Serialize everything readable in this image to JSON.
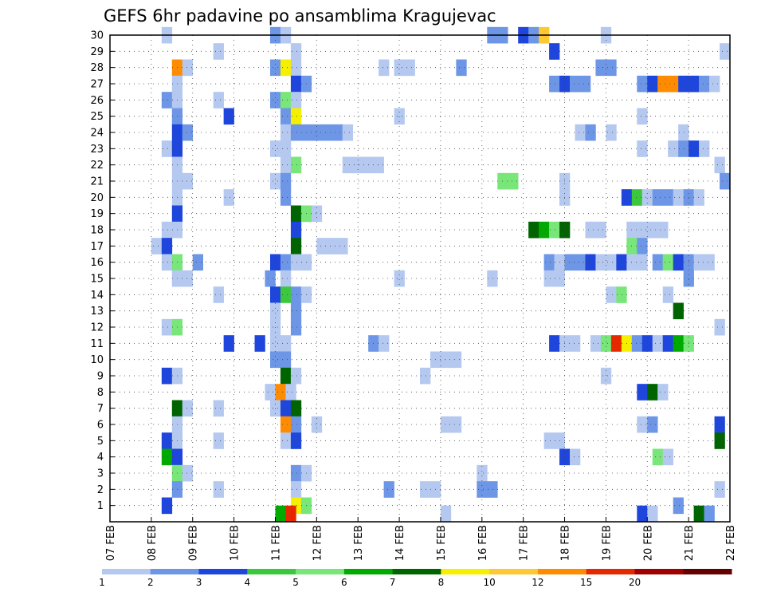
{
  "chart_data": {
    "type": "heatmap",
    "title": "GEFS 6hr padavine po ansamblima Kragujevac",
    "xlabel": "",
    "ylabel": "",
    "x_tick_labels": [
      "07 FEB",
      "08 FEB",
      "09 FEB",
      "10 FEB",
      "11 FEB",
      "12 FEB",
      "13 FEB",
      "14 FEB",
      "15 FEB",
      "16 FEB",
      "17 FEB",
      "18 FEB",
      "19 FEB",
      "20 FEB",
      "21 FEB",
      "22 FEB"
    ],
    "y_tick_labels": [
      "1",
      "2",
      "3",
      "4",
      "5",
      "6",
      "7",
      "8",
      "9",
      "10",
      "11",
      "12",
      "13",
      "14",
      "15",
      "16",
      "17",
      "18",
      "19",
      "20",
      "21",
      "22",
      "23",
      "24",
      "25",
      "26",
      "27",
      "28",
      "29",
      "30"
    ],
    "xlim": [
      0,
      60
    ],
    "ylim": [
      0,
      30
    ],
    "x_unit": "6-hour steps from 07 FEB 00z",
    "grid": true,
    "legend_placement": "bottom",
    "legend_labels": [
      "1",
      "2",
      "3",
      "4",
      "5",
      "6",
      "7",
      "8",
      "10",
      "12",
      "15",
      "20"
    ],
    "legend_colors": [
      "#b4c8f0",
      "#6e96e6",
      "#1e46dc",
      "#3cc83c",
      "#78e678",
      "#00aa00",
      "#006400",
      "#f5f000",
      "#ffc832",
      "#ff8c00",
      "#e62800",
      "#a00000",
      "#640000"
    ],
    "cells": [
      {
        "x": 5.5,
        "y": 30,
        "c": 0
      },
      {
        "x": 16,
        "y": 30,
        "c": 1
      },
      {
        "x": 17,
        "y": 30,
        "c": 0
      },
      {
        "x": 37,
        "y": 30,
        "c": 1
      },
      {
        "x": 38,
        "y": 30,
        "c": 1
      },
      {
        "x": 40,
        "y": 30,
        "c": 2
      },
      {
        "x": 41,
        "y": 30,
        "c": 1
      },
      {
        "x": 42,
        "y": 30,
        "c": 8
      },
      {
        "x": 48,
        "y": 30,
        "c": 0
      },
      {
        "x": 10.5,
        "y": 29,
        "c": 0
      },
      {
        "x": 18,
        "y": 29,
        "c": 0
      },
      {
        "x": 43,
        "y": 29,
        "c": 2
      },
      {
        "x": 59.5,
        "y": 29,
        "c": 0
      },
      {
        "x": 6.5,
        "y": 28,
        "c": 9
      },
      {
        "x": 7.5,
        "y": 28,
        "c": 0
      },
      {
        "x": 16,
        "y": 28,
        "c": 1
      },
      {
        "x": 17,
        "y": 28,
        "c": 7
      },
      {
        "x": 18,
        "y": 28,
        "c": 0
      },
      {
        "x": 26.5,
        "y": 28,
        "c": 0
      },
      {
        "x": 28,
        "y": 28,
        "c": 0
      },
      {
        "x": 29,
        "y": 28,
        "c": 0
      },
      {
        "x": 34,
        "y": 28,
        "c": 1
      },
      {
        "x": 47.5,
        "y": 28,
        "c": 1
      },
      {
        "x": 48.5,
        "y": 28,
        "c": 1
      },
      {
        "x": 6.5,
        "y": 27,
        "c": 0
      },
      {
        "x": 18,
        "y": 27,
        "c": 2
      },
      {
        "x": 19,
        "y": 27,
        "c": 1
      },
      {
        "x": 43,
        "y": 27,
        "c": 1
      },
      {
        "x": 44,
        "y": 27,
        "c": 2
      },
      {
        "x": 45,
        "y": 27,
        "c": 1
      },
      {
        "x": 46,
        "y": 27,
        "c": 1
      },
      {
        "x": 51.5,
        "y": 27,
        "c": 1
      },
      {
        "x": 52.5,
        "y": 27,
        "c": 2
      },
      {
        "x": 53.5,
        "y": 27,
        "c": 9
      },
      {
        "x": 54.5,
        "y": 27,
        "c": 9
      },
      {
        "x": 55.5,
        "y": 27,
        "c": 2
      },
      {
        "x": 56.5,
        "y": 27,
        "c": 2
      },
      {
        "x": 57.5,
        "y": 27,
        "c": 1
      },
      {
        "x": 58.5,
        "y": 27,
        "c": 0
      },
      {
        "x": 5.5,
        "y": 26,
        "c": 1
      },
      {
        "x": 6.5,
        "y": 26,
        "c": 0
      },
      {
        "x": 10.5,
        "y": 26,
        "c": 0
      },
      {
        "x": 16,
        "y": 26,
        "c": 1
      },
      {
        "x": 17,
        "y": 26,
        "c": 4
      },
      {
        "x": 18,
        "y": 26,
        "c": 0
      },
      {
        "x": 6.5,
        "y": 25,
        "c": 1
      },
      {
        "x": 11.5,
        "y": 25,
        "c": 2
      },
      {
        "x": 17,
        "y": 25,
        "c": 1
      },
      {
        "x": 18,
        "y": 25,
        "c": 7
      },
      {
        "x": 28,
        "y": 25,
        "c": 0
      },
      {
        "x": 51.5,
        "y": 25,
        "c": 0
      },
      {
        "x": 6.5,
        "y": 24,
        "c": 2
      },
      {
        "x": 7.5,
        "y": 24,
        "c": 1
      },
      {
        "x": 17,
        "y": 24,
        "c": 0
      },
      {
        "x": 18,
        "y": 24,
        "c": 1
      },
      {
        "x": 19,
        "y": 24,
        "c": 1
      },
      {
        "x": 20,
        "y": 24,
        "c": 1
      },
      {
        "x": 21,
        "y": 24,
        "c": 1
      },
      {
        "x": 22,
        "y": 24,
        "c": 1
      },
      {
        "x": 23,
        "y": 24,
        "c": 0
      },
      {
        "x": 45.5,
        "y": 24,
        "c": 0
      },
      {
        "x": 46.5,
        "y": 24,
        "c": 1
      },
      {
        "x": 48.5,
        "y": 24,
        "c": 0
      },
      {
        "x": 55.5,
        "y": 24,
        "c": 0
      },
      {
        "x": 5.5,
        "y": 23,
        "c": 0
      },
      {
        "x": 6.5,
        "y": 23,
        "c": 2
      },
      {
        "x": 16,
        "y": 23,
        "c": 0
      },
      {
        "x": 17,
        "y": 23,
        "c": 0
      },
      {
        "x": 51.5,
        "y": 23,
        "c": 0
      },
      {
        "x": 54.5,
        "y": 23,
        "c": 0
      },
      {
        "x": 55.5,
        "y": 23,
        "c": 1
      },
      {
        "x": 56.5,
        "y": 23,
        "c": 2
      },
      {
        "x": 57.5,
        "y": 23,
        "c": 0
      },
      {
        "x": 6.5,
        "y": 22,
        "c": 0
      },
      {
        "x": 17,
        "y": 22,
        "c": 0
      },
      {
        "x": 18,
        "y": 22,
        "c": 4
      },
      {
        "x": 23,
        "y": 22,
        "c": 0
      },
      {
        "x": 24,
        "y": 22,
        "c": 0
      },
      {
        "x": 25,
        "y": 22,
        "c": 0
      },
      {
        "x": 26,
        "y": 22,
        "c": 0
      },
      {
        "x": 59,
        "y": 22,
        "c": 0
      },
      {
        "x": 6.5,
        "y": 21,
        "c": 0
      },
      {
        "x": 7.5,
        "y": 21,
        "c": 0
      },
      {
        "x": 16,
        "y": 21,
        "c": 0
      },
      {
        "x": 17,
        "y": 21,
        "c": 1
      },
      {
        "x": 38,
        "y": 21,
        "c": 4
      },
      {
        "x": 39,
        "y": 21,
        "c": 4
      },
      {
        "x": 44,
        "y": 21,
        "c": 0
      },
      {
        "x": 59.5,
        "y": 21,
        "c": 1
      },
      {
        "x": 6.5,
        "y": 20,
        "c": 0
      },
      {
        "x": 11.5,
        "y": 20,
        "c": 0
      },
      {
        "x": 17,
        "y": 20,
        "c": 1
      },
      {
        "x": 44,
        "y": 20,
        "c": 0
      },
      {
        "x": 50,
        "y": 20,
        "c": 2
      },
      {
        "x": 51,
        "y": 20,
        "c": 3
      },
      {
        "x": 52,
        "y": 20,
        "c": 0
      },
      {
        "x": 53,
        "y": 20,
        "c": 1
      },
      {
        "x": 54,
        "y": 20,
        "c": 1
      },
      {
        "x": 55,
        "y": 20,
        "c": 0
      },
      {
        "x": 56,
        "y": 20,
        "c": 1
      },
      {
        "x": 57,
        "y": 20,
        "c": 0
      },
      {
        "x": 6.5,
        "y": 19,
        "c": 2
      },
      {
        "x": 18,
        "y": 19,
        "c": 6
      },
      {
        "x": 19,
        "y": 19,
        "c": 4
      },
      {
        "x": 20,
        "y": 19,
        "c": 0
      },
      {
        "x": 5.5,
        "y": 18,
        "c": 0
      },
      {
        "x": 6.5,
        "y": 18,
        "c": 0
      },
      {
        "x": 18,
        "y": 18,
        "c": 2
      },
      {
        "x": 41,
        "y": 18,
        "c": 6
      },
      {
        "x": 42,
        "y": 18,
        "c": 5
      },
      {
        "x": 43,
        "y": 18,
        "c": 4
      },
      {
        "x": 44,
        "y": 18,
        "c": 6
      },
      {
        "x": 46.5,
        "y": 18,
        "c": 0
      },
      {
        "x": 47.5,
        "y": 18,
        "c": 0
      },
      {
        "x": 50.5,
        "y": 18,
        "c": 0
      },
      {
        "x": 51.5,
        "y": 18,
        "c": 0
      },
      {
        "x": 52.5,
        "y": 18,
        "c": 0
      },
      {
        "x": 53.5,
        "y": 18,
        "c": 0
      },
      {
        "x": 4.5,
        "y": 17,
        "c": 0
      },
      {
        "x": 5.5,
        "y": 17,
        "c": 2
      },
      {
        "x": 18,
        "y": 17,
        "c": 6
      },
      {
        "x": 20.5,
        "y": 17,
        "c": 0
      },
      {
        "x": 21.5,
        "y": 17,
        "c": 0
      },
      {
        "x": 22.5,
        "y": 17,
        "c": 0
      },
      {
        "x": 50.5,
        "y": 17,
        "c": 4
      },
      {
        "x": 51.5,
        "y": 17,
        "c": 1
      },
      {
        "x": 5.5,
        "y": 16,
        "c": 0
      },
      {
        "x": 6.5,
        "y": 16,
        "c": 4
      },
      {
        "x": 8.5,
        "y": 16,
        "c": 1
      },
      {
        "x": 16,
        "y": 16,
        "c": 2
      },
      {
        "x": 17,
        "y": 16,
        "c": 1
      },
      {
        "x": 18,
        "y": 16,
        "c": 0
      },
      {
        "x": 19,
        "y": 16,
        "c": 0
      },
      {
        "x": 42.5,
        "y": 16,
        "c": 1
      },
      {
        "x": 43.5,
        "y": 16,
        "c": 0
      },
      {
        "x": 44.5,
        "y": 16,
        "c": 1
      },
      {
        "x": 45.5,
        "y": 16,
        "c": 1
      },
      {
        "x": 46.5,
        "y": 16,
        "c": 2
      },
      {
        "x": 47.5,
        "y": 16,
        "c": 0
      },
      {
        "x": 48.5,
        "y": 16,
        "c": 0
      },
      {
        "x": 49.5,
        "y": 16,
        "c": 2
      },
      {
        "x": 50.5,
        "y": 16,
        "c": 0
      },
      {
        "x": 51.5,
        "y": 16,
        "c": 0
      },
      {
        "x": 53,
        "y": 16,
        "c": 1
      },
      {
        "x": 54,
        "y": 16,
        "c": 4
      },
      {
        "x": 55,
        "y": 16,
        "c": 2
      },
      {
        "x": 56,
        "y": 16,
        "c": 1
      },
      {
        "x": 57,
        "y": 16,
        "c": 0
      },
      {
        "x": 58,
        "y": 16,
        "c": 0
      },
      {
        "x": 6.5,
        "y": 15,
        "c": 0
      },
      {
        "x": 7.5,
        "y": 15,
        "c": 0
      },
      {
        "x": 15.5,
        "y": 15,
        "c": 1
      },
      {
        "x": 17,
        "y": 15,
        "c": 0
      },
      {
        "x": 28,
        "y": 15,
        "c": 0
      },
      {
        "x": 37,
        "y": 15,
        "c": 0
      },
      {
        "x": 42.5,
        "y": 15,
        "c": 0
      },
      {
        "x": 43.5,
        "y": 15,
        "c": 0
      },
      {
        "x": 56,
        "y": 15,
        "c": 1
      },
      {
        "x": 10.5,
        "y": 14,
        "c": 0
      },
      {
        "x": 16,
        "y": 14,
        "c": 2
      },
      {
        "x": 17,
        "y": 14,
        "c": 3
      },
      {
        "x": 18,
        "y": 14,
        "c": 1
      },
      {
        "x": 19,
        "y": 14,
        "c": 0
      },
      {
        "x": 48.5,
        "y": 14,
        "c": 0
      },
      {
        "x": 49.5,
        "y": 14,
        "c": 4
      },
      {
        "x": 54,
        "y": 14,
        "c": 0
      },
      {
        "x": 5.5,
        "y": 12,
        "c": 0
      },
      {
        "x": 6.5,
        "y": 12,
        "c": 4
      },
      {
        "x": 16,
        "y": 13,
        "c": 0
      },
      {
        "x": 18,
        "y": 13,
        "c": 1
      },
      {
        "x": 16,
        "y": 12,
        "c": 0
      },
      {
        "x": 18,
        "y": 12,
        "c": 1
      },
      {
        "x": 55,
        "y": 13,
        "c": 6
      },
      {
        "x": 59,
        "y": 12,
        "c": 0
      },
      {
        "x": 11.5,
        "y": 11,
        "c": 2
      },
      {
        "x": 14.5,
        "y": 11,
        "c": 2
      },
      {
        "x": 16,
        "y": 11,
        "c": 0
      },
      {
        "x": 17,
        "y": 11,
        "c": 0
      },
      {
        "x": 25.5,
        "y": 11,
        "c": 1
      },
      {
        "x": 26.5,
        "y": 11,
        "c": 0
      },
      {
        "x": 43,
        "y": 11,
        "c": 2
      },
      {
        "x": 44,
        "y": 11,
        "c": 0
      },
      {
        "x": 45,
        "y": 11,
        "c": 0
      },
      {
        "x": 47,
        "y": 11,
        "c": 0
      },
      {
        "x": 48,
        "y": 11,
        "c": 4
      },
      {
        "x": 49,
        "y": 11,
        "c": 10
      },
      {
        "x": 50,
        "y": 11,
        "c": 7
      },
      {
        "x": 51,
        "y": 11,
        "c": 1
      },
      {
        "x": 52,
        "y": 11,
        "c": 2
      },
      {
        "x": 53,
        "y": 11,
        "c": 0
      },
      {
        "x": 54,
        "y": 11,
        "c": 2
      },
      {
        "x": 55,
        "y": 11,
        "c": 5
      },
      {
        "x": 56,
        "y": 11,
        "c": 4
      },
      {
        "x": 16,
        "y": 10,
        "c": 1
      },
      {
        "x": 17,
        "y": 10,
        "c": 1
      },
      {
        "x": 31.5,
        "y": 10,
        "c": 0
      },
      {
        "x": 32.5,
        "y": 10,
        "c": 0
      },
      {
        "x": 33.5,
        "y": 10,
        "c": 0
      },
      {
        "x": 5.5,
        "y": 9,
        "c": 2
      },
      {
        "x": 6.5,
        "y": 9,
        "c": 0
      },
      {
        "x": 17,
        "y": 9,
        "c": 6
      },
      {
        "x": 18,
        "y": 9,
        "c": 0
      },
      {
        "x": 30.5,
        "y": 9,
        "c": 0
      },
      {
        "x": 48,
        "y": 9,
        "c": 0
      },
      {
        "x": 15.5,
        "y": 8,
        "c": 0
      },
      {
        "x": 16.5,
        "y": 8,
        "c": 9
      },
      {
        "x": 17.5,
        "y": 8,
        "c": 0
      },
      {
        "x": 51.5,
        "y": 8,
        "c": 2
      },
      {
        "x": 52.5,
        "y": 8,
        "c": 6
      },
      {
        "x": 53.5,
        "y": 8,
        "c": 0
      },
      {
        "x": 6.5,
        "y": 7,
        "c": 6
      },
      {
        "x": 7.5,
        "y": 7,
        "c": 0
      },
      {
        "x": 10.5,
        "y": 7,
        "c": 0
      },
      {
        "x": 16,
        "y": 7,
        "c": 0
      },
      {
        "x": 17,
        "y": 7,
        "c": 2
      },
      {
        "x": 18,
        "y": 7,
        "c": 6
      },
      {
        "x": 6.5,
        "y": 6,
        "c": 0
      },
      {
        "x": 17,
        "y": 6,
        "c": 9
      },
      {
        "x": 18,
        "y": 6,
        "c": 1
      },
      {
        "x": 20,
        "y": 6,
        "c": 0
      },
      {
        "x": 32.5,
        "y": 6,
        "c": 0
      },
      {
        "x": 33.5,
        "y": 6,
        "c": 0
      },
      {
        "x": 51.5,
        "y": 6,
        "c": 0
      },
      {
        "x": 52.5,
        "y": 6,
        "c": 1
      },
      {
        "x": 59,
        "y": 6,
        "c": 2
      },
      {
        "x": 5.5,
        "y": 5,
        "c": 2
      },
      {
        "x": 6.5,
        "y": 5,
        "c": 0
      },
      {
        "x": 10.5,
        "y": 5,
        "c": 0
      },
      {
        "x": 17,
        "y": 5,
        "c": 0
      },
      {
        "x": 18,
        "y": 5,
        "c": 2
      },
      {
        "x": 42.5,
        "y": 5,
        "c": 0
      },
      {
        "x": 43.5,
        "y": 5,
        "c": 0
      },
      {
        "x": 59,
        "y": 5,
        "c": 6
      },
      {
        "x": 5.5,
        "y": 4,
        "c": 5
      },
      {
        "x": 6.5,
        "y": 4,
        "c": 2
      },
      {
        "x": 44,
        "y": 4,
        "c": 2
      },
      {
        "x": 45,
        "y": 4,
        "c": 0
      },
      {
        "x": 53,
        "y": 4,
        "c": 4
      },
      {
        "x": 54,
        "y": 4,
        "c": 0
      },
      {
        "x": 6.5,
        "y": 3,
        "c": 4
      },
      {
        "x": 7.5,
        "y": 3,
        "c": 0
      },
      {
        "x": 18,
        "y": 3,
        "c": 1
      },
      {
        "x": 19,
        "y": 3,
        "c": 0
      },
      {
        "x": 36,
        "y": 3,
        "c": 0
      },
      {
        "x": 6.5,
        "y": 2,
        "c": 1
      },
      {
        "x": 10.5,
        "y": 2,
        "c": 0
      },
      {
        "x": 18,
        "y": 2,
        "c": 0
      },
      {
        "x": 27,
        "y": 2,
        "c": 1
      },
      {
        "x": 30.5,
        "y": 2,
        "c": 0
      },
      {
        "x": 31.5,
        "y": 2,
        "c": 0
      },
      {
        "x": 36,
        "y": 2,
        "c": 1
      },
      {
        "x": 37,
        "y": 2,
        "c": 1
      },
      {
        "x": 59,
        "y": 2,
        "c": 0
      },
      {
        "x": 5.5,
        "y": 1,
        "c": 2
      },
      {
        "x": 18,
        "y": 1,
        "c": 7
      },
      {
        "x": 19,
        "y": 1,
        "c": 4
      },
      {
        "x": 55,
        "y": 1,
        "c": 1
      },
      {
        "x": 16.5,
        "y": 0.5,
        "c": 5
      },
      {
        "x": 17.5,
        "y": 0.5,
        "c": 10
      },
      {
        "x": 32.5,
        "y": 0.5,
        "c": 0
      },
      {
        "x": 51.5,
        "y": 0.5,
        "c": 2
      },
      {
        "x": 52.5,
        "y": 0.5,
        "c": 0
      },
      {
        "x": 57,
        "y": 0.5,
        "c": 6
      },
      {
        "x": 58,
        "y": 0.5,
        "c": 1
      }
    ]
  }
}
